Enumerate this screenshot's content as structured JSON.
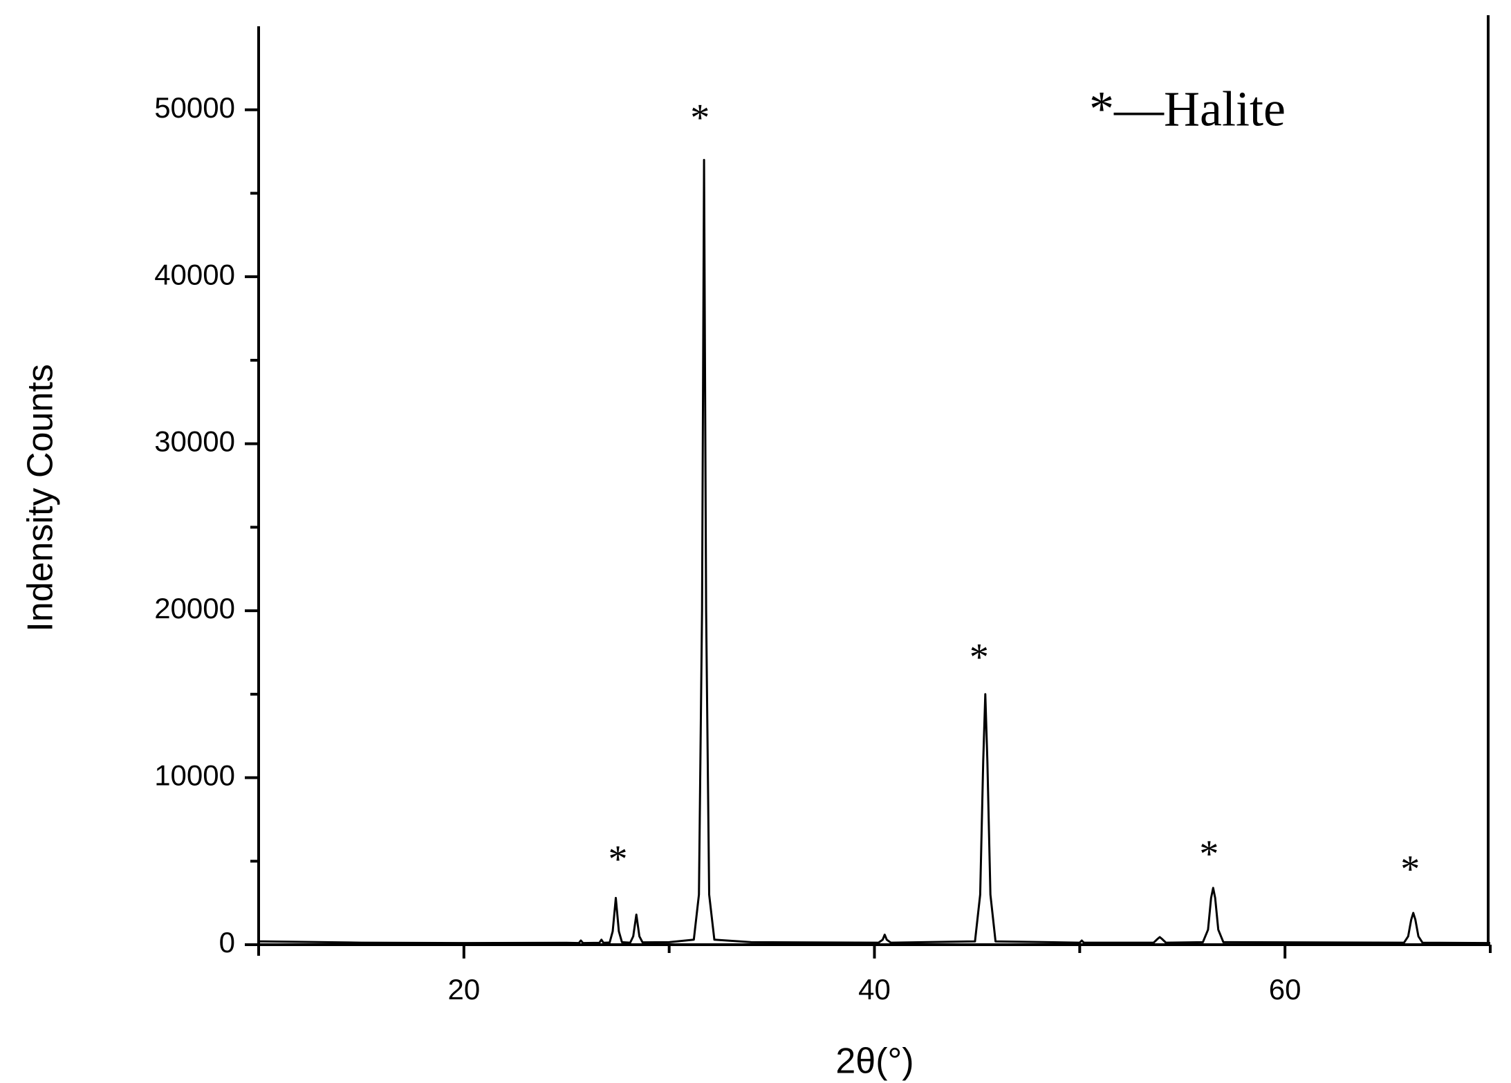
{
  "chart_data": {
    "type": "line",
    "xlabel": "2θ(°)",
    "ylabel": "Indensity Counts",
    "legend_note": "*—Halite",
    "xlim": [
      10,
      70
    ],
    "xticks": [
      20,
      40,
      60
    ],
    "xminor": [
      10,
      30,
      50,
      70
    ],
    "ylim": [
      0,
      55000
    ],
    "yticks": [
      0,
      10000,
      20000,
      30000,
      40000,
      50000
    ],
    "yminor": [
      5000,
      15000,
      25000,
      35000,
      45000
    ],
    "annotations": [
      {
        "text": "*",
        "x": 27.5,
        "y": 5400
      },
      {
        "text": "*",
        "x": 31.5,
        "y": 49800
      },
      {
        "text": "*",
        "x": 45.1,
        "y": 17500
      },
      {
        "text": "*",
        "x": 56.3,
        "y": 5700
      },
      {
        "text": "*",
        "x": 66.1,
        "y": 4800
      }
    ],
    "series": [
      {
        "color": "#000000",
        "x": [
          10,
          15,
          20,
          25,
          25.6,
          25.7,
          25.8,
          26.6,
          26.7,
          26.8,
          27.1,
          27.25,
          27.4,
          27.55,
          27.7,
          28.1,
          28.25,
          28.4,
          28.55,
          28.7,
          30,
          31.2,
          31.45,
          31.6,
          31.7,
          31.8,
          31.95,
          32.2,
          34,
          40.2,
          40.4,
          40.5,
          40.6,
          40.8,
          44.9,
          45.15,
          45.3,
          45.4,
          45.5,
          45.65,
          45.9,
          50,
          50.1,
          50.2,
          53.6,
          53.8,
          53.9,
          54.0,
          54.2,
          56.0,
          56.25,
          56.4,
          56.5,
          56.6,
          56.75,
          57.0,
          65.8,
          66.0,
          66.15,
          66.25,
          66.35,
          66.5,
          66.7,
          70
        ],
        "values": [
          200,
          120,
          100,
          110,
          100,
          250,
          100,
          110,
          300,
          110,
          130,
          800,
          2800,
          800,
          150,
          120,
          500,
          1800,
          500,
          140,
          150,
          300,
          3000,
          20000,
          47000,
          20000,
          3000,
          300,
          150,
          120,
          300,
          600,
          300,
          120,
          200,
          3000,
          11000,
          15000,
          11000,
          3000,
          200,
          120,
          250,
          120,
          120,
          350,
          450,
          350,
          120,
          150,
          900,
          2800,
          3400,
          2800,
          900,
          150,
          120,
          500,
          1500,
          1900,
          1500,
          500,
          120,
          100
        ]
      }
    ]
  }
}
